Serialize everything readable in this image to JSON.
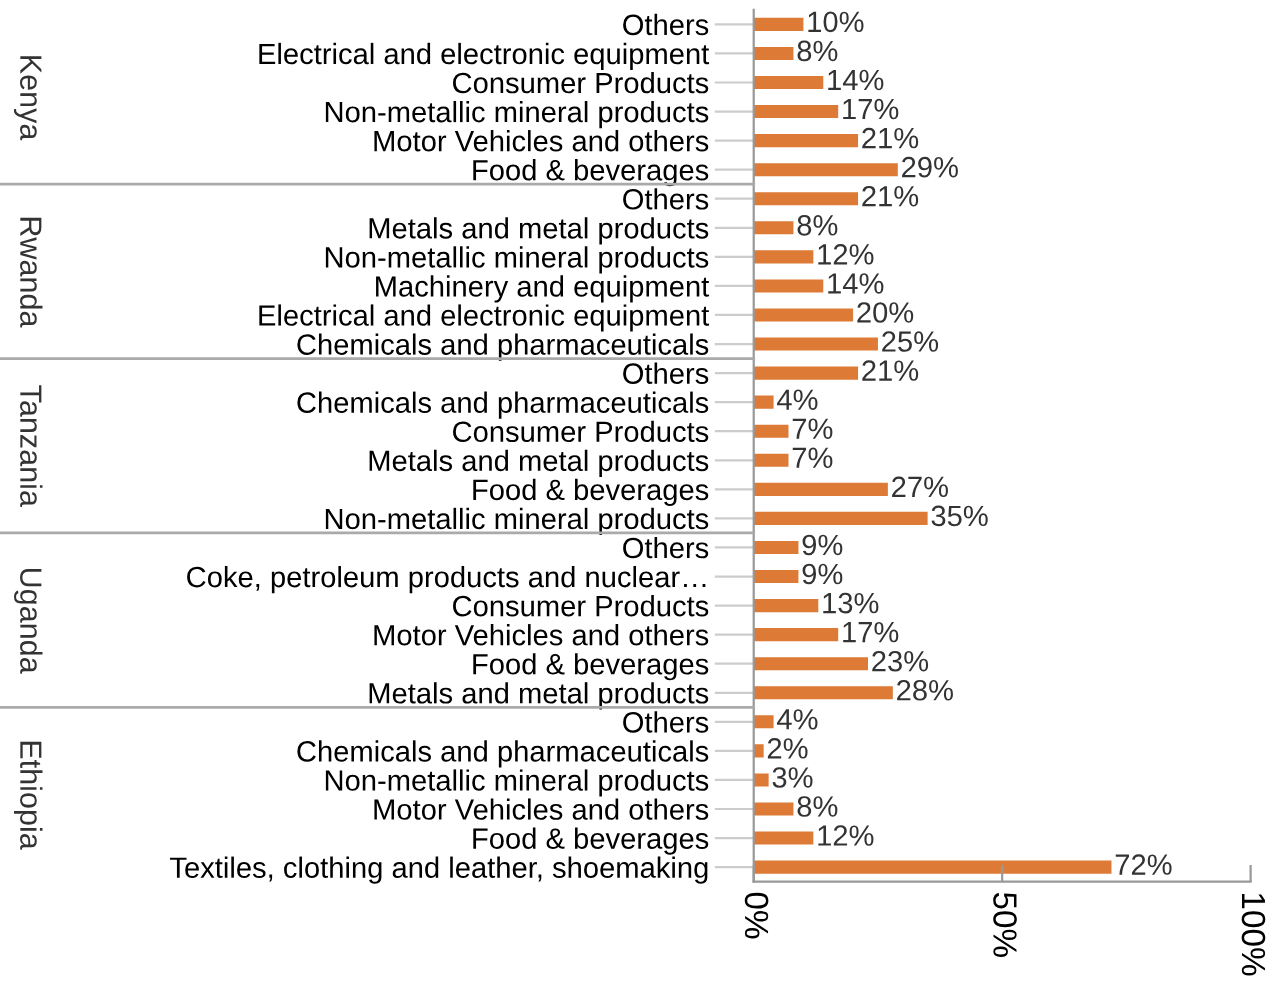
{
  "chart_data": [
    {
      "type": "bar",
      "orientation": "horizontal",
      "ylabel": "Kenya",
      "categories": [
        "Others",
        "Electrical and electronic equipment",
        "Consumer Products",
        "Non-metallic mineral products",
        "Motor Vehicles and others",
        "Food & beverages"
      ],
      "values": [
        10,
        8,
        14,
        17,
        21,
        29
      ],
      "value_labels": [
        "10%",
        "8%",
        "14%",
        "17%",
        "21%",
        "29%"
      ],
      "color": "#dd7a35",
      "xlim": [
        0,
        100
      ],
      "tick_labels": "y"
    },
    {
      "type": "bar",
      "orientation": "horizontal",
      "ylabel": "Rwanda",
      "categories": [
        "Others",
        "Metals and metal products",
        "Non-metallic mineral products",
        "Machinery and equipment",
        "Electrical and electronic equipment",
        "Chemicals and pharmaceuticals"
      ],
      "values": [
        21,
        8,
        12,
        14,
        20,
        25
      ],
      "value_labels": [
        "21%",
        "8%",
        "12%",
        "14%",
        "20%",
        "25%"
      ],
      "color": "#dd7a35",
      "xlim": [
        0,
        100
      ],
      "tick_labels": "y"
    },
    {
      "type": "bar",
      "orientation": "horizontal",
      "ylabel": "Tanzania",
      "categories": [
        "Others",
        "Chemicals and pharmaceuticals",
        "Consumer Products",
        "Metals and metal products",
        "Food & beverages",
        "Non-metallic mineral products"
      ],
      "values": [
        21,
        4,
        7,
        7,
        27,
        35
      ],
      "value_labels": [
        "21%",
        "4%",
        "7%",
        "7%",
        "27%",
        "35%"
      ],
      "color": "#dd7a35",
      "xlim": [
        0,
        100
      ],
      "tick_labels": "y"
    },
    {
      "type": "bar",
      "orientation": "horizontal",
      "ylabel": "Uganda",
      "categories": [
        "Others",
        "Coke, petroleum products and nuclear…",
        "Consumer Products",
        "Motor Vehicles and others",
        "Food & beverages",
        "Metals and metal products"
      ],
      "values": [
        9,
        9,
        13,
        17,
        23,
        28
      ],
      "value_labels": [
        "9%",
        "9%",
        "13%",
        "17%",
        "23%",
        "28%"
      ],
      "color": "#dd7a35",
      "xlim": [
        0,
        100
      ],
      "tick_labels": "y"
    },
    {
      "type": "bar",
      "orientation": "horizontal",
      "ylabel": "Ethiopia",
      "categories": [
        "Others",
        "Chemicals and pharmaceuticals",
        "Non-metallic mineral products",
        "Motor Vehicles and others",
        "Food & beverages",
        "Textiles, clothing and leather, shoemaking"
      ],
      "values": [
        4,
        2,
        3,
        8,
        12,
        72
      ],
      "value_labels": [
        "4%",
        "2%",
        "3%",
        "8%",
        "12%",
        "72%"
      ],
      "color": "#dd7a35",
      "xlim": [
        0,
        100
      ],
      "xticks": [
        {
          "value": 0,
          "label": "0%"
        },
        {
          "value": 50,
          "label": "50%"
        },
        {
          "value": 100,
          "label": "100%"
        }
      ]
    }
  ]
}
